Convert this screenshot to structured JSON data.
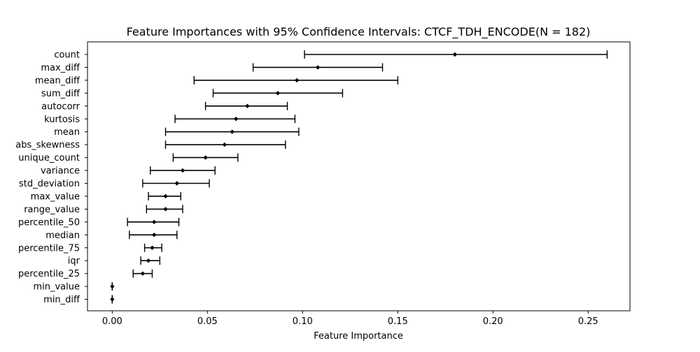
{
  "chart_data": {
    "type": "scatter",
    "title": "Feature Importances with 95% Confidence Intervals: CTCF_TDH_ENCODE(N = 182)",
    "xlabel": "Feature Importance",
    "ylabel": "",
    "xlim": [
      -0.013,
      0.272
    ],
    "xticks": [
      0.0,
      0.05,
      0.1,
      0.15,
      0.2,
      0.25
    ],
    "xtick_labels": [
      "0.00",
      "0.05",
      "0.10",
      "0.15",
      "0.20",
      "0.25"
    ],
    "grid": false,
    "legend": "none",
    "colors": {
      "marker": "#000000",
      "errorbar": "#000000",
      "axes": "#000000"
    },
    "categories": [
      "count",
      "max_diff",
      "mean_diff",
      "sum_diff",
      "autocorr",
      "kurtosis",
      "mean",
      "abs_skewness",
      "unique_count",
      "variance",
      "std_deviation",
      "max_value",
      "range_value",
      "percentile_50",
      "median",
      "percentile_75",
      "iqr",
      "percentile_25",
      "min_value",
      "min_diff"
    ],
    "values": [
      0.18,
      0.108,
      0.097,
      0.087,
      0.071,
      0.065,
      0.063,
      0.059,
      0.049,
      0.037,
      0.034,
      0.028,
      0.028,
      0.022,
      0.022,
      0.021,
      0.019,
      0.016,
      0.0,
      0.0
    ],
    "ci_low": [
      0.101,
      0.074,
      0.043,
      0.053,
      0.049,
      0.033,
      0.028,
      0.028,
      0.032,
      0.02,
      0.016,
      0.019,
      0.018,
      0.008,
      0.009,
      0.017,
      0.015,
      0.011,
      0.0,
      0.0
    ],
    "ci_high": [
      0.26,
      0.142,
      0.15,
      0.121,
      0.092,
      0.096,
      0.098,
      0.091,
      0.066,
      0.054,
      0.051,
      0.036,
      0.037,
      0.035,
      0.034,
      0.026,
      0.025,
      0.021,
      0.0,
      0.0
    ]
  }
}
